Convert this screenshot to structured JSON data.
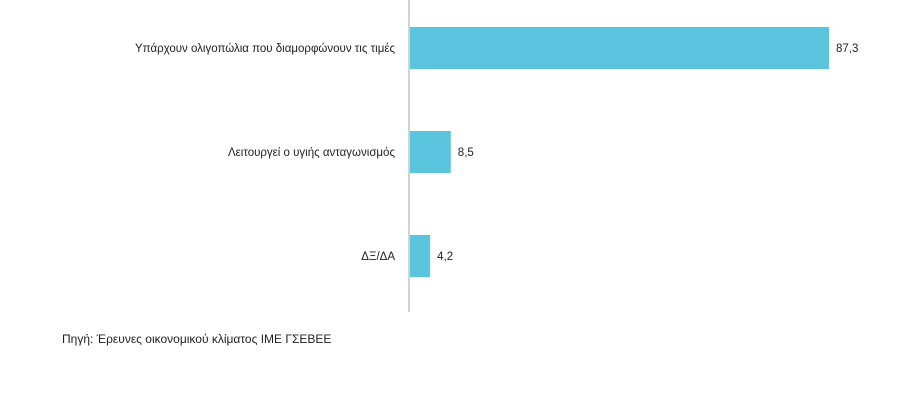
{
  "chart_data": {
    "type": "bar",
    "orientation": "horizontal",
    "categories": [
      "Υπάρχουν ολιγοπώλια που διαμορφώνουν τις τιμές",
      "Λειτουργεί ο υγιής ανταγωνισμός",
      "ΔΞ/ΔΑ"
    ],
    "values": [
      87.3,
      8.5,
      4.2
    ],
    "value_labels": [
      "87,3",
      "8,5",
      "4,2"
    ],
    "xlim": [
      0,
      100
    ],
    "grid": false,
    "legend": "none",
    "bar_color": "#5bc4de",
    "axis_color": "#a6a6a6"
  },
  "source": {
    "text": "Πηγή: Έρευνες οικονομικού κλίματος ΙΜΕ ΓΣΕΒΕΕ"
  }
}
